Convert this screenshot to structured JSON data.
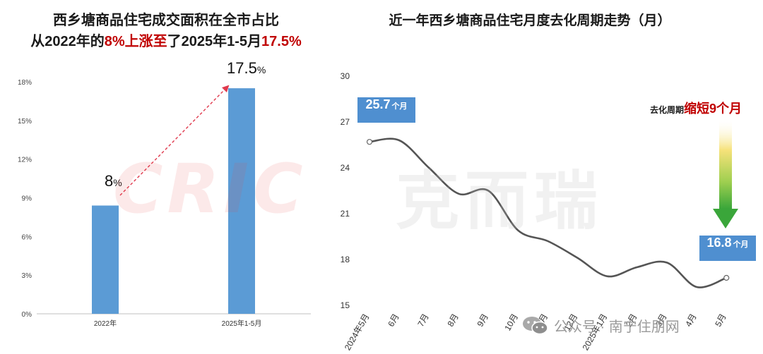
{
  "left_chart": {
    "title_line1": "西乡塘商品住宅成交面积在全市占比",
    "title_line2_prefix": "从2022年的",
    "title_line2_hl1": "8%上涨至",
    "title_line2_mid": "了2025年1-5月",
    "title_line2_hl2": "17.5%",
    "y_ticks": [
      "0%",
      "3%",
      "6%",
      "9%",
      "12%",
      "15%",
      "18%"
    ],
    "bar_labels": [
      {
        "num": "8",
        "unit": "%"
      },
      {
        "num": "17.5",
        "unit": "%"
      }
    ]
  },
  "right_chart": {
    "title": "近一年西乡塘商品住宅月度去化周期走势（月）",
    "y_ticks": [
      "15",
      "18",
      "21",
      "24",
      "27",
      "30"
    ],
    "start_callout": {
      "value": "25.7",
      "unit": "个月"
    },
    "end_callout": {
      "value": "16.8",
      "unit": "个月"
    },
    "shorten_lead": "去化周期",
    "shorten_emph": "缩短9个月"
  },
  "watermark": {
    "latin": "CRIC",
    "cn": "克而瑞"
  },
  "footer": {
    "wechat_label": "公众号 · 南宁住朋网"
  },
  "colors": {
    "bar": "#5b9bd5",
    "line": "#555555",
    "highlight": "#c00000",
    "callout": "#4f8fd0",
    "arrow_green": "#3aa63a"
  },
  "chart_data": [
    {
      "type": "bar",
      "categories": [
        "2022年",
        "2025年1-5月"
      ],
      "values": [
        8.4,
        17.5
      ],
      "ylim": [
        0,
        18
      ],
      "y_unit": "%",
      "grid": false
    },
    {
      "type": "line",
      "categories": [
        "2024年5月",
        "6月",
        "7月",
        "8月",
        "9月",
        "10月",
        "11月",
        "12月",
        "2025年1月",
        "2月",
        "3月",
        "4月",
        "5月"
      ],
      "values": [
        25.7,
        25.8,
        24.0,
        22.3,
        22.5,
        19.9,
        19.2,
        18.1,
        16.9,
        17.5,
        17.8,
        16.2,
        16.8
      ],
      "ylim": [
        15,
        30
      ],
      "grid": false
    }
  ]
}
